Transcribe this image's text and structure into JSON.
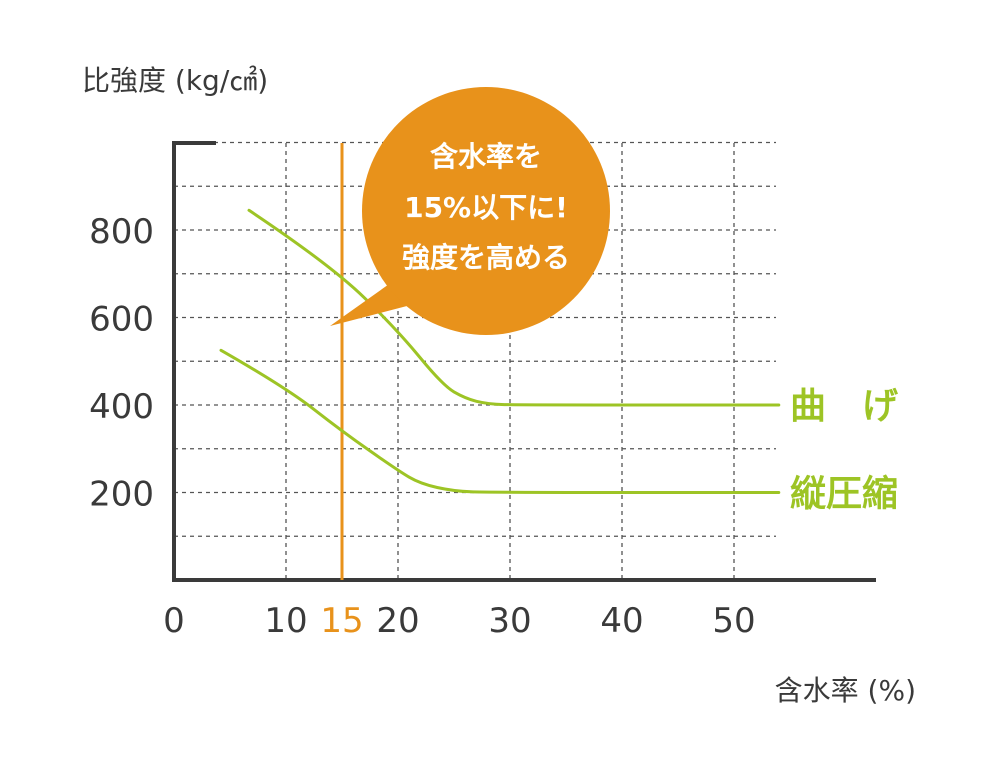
{
  "chart_data": {
    "type": "line",
    "ylabel": "比強度 (kg/㎠)",
    "xlabel": "含水率 (%)",
    "xlim": [
      0,
      63
    ],
    "ylim": [
      0,
      1000
    ],
    "x_ticks": [
      {
        "value": 0,
        "label": "0"
      },
      {
        "value": 10,
        "label": "10"
      },
      {
        "value": 15,
        "label": "15"
      },
      {
        "value": 20,
        "label": "20"
      },
      {
        "value": 30,
        "label": "30"
      },
      {
        "value": 40,
        "label": "40"
      },
      {
        "value": 50,
        "label": "50"
      }
    ],
    "y_ticks": [
      {
        "value": 200,
        "label": "200"
      },
      {
        "value": 400,
        "label": "400"
      },
      {
        "value": 600,
        "label": "600"
      },
      {
        "value": 800,
        "label": "800"
      }
    ],
    "x_grid": [
      10,
      20,
      30,
      40,
      50
    ],
    "y_grid": [
      100,
      200,
      300,
      400,
      500,
      600,
      700,
      800,
      900,
      1000
    ],
    "grid": true,
    "grid_style": "dashed",
    "series": [
      {
        "name": "曲　げ",
        "color": "#9dc425",
        "points": [
          [
            6.7,
            845
          ],
          [
            14,
            720
          ],
          [
            20,
            570
          ],
          [
            24,
            445
          ],
          [
            26,
            415
          ],
          [
            28,
            402
          ],
          [
            31,
            400
          ],
          [
            54,
            400
          ]
        ]
      },
      {
        "name": "縦圧縮",
        "color": "#9dc425",
        "points": [
          [
            4.2,
            525
          ],
          [
            10,
            440
          ],
          [
            15,
            340
          ],
          [
            20,
            250
          ],
          [
            22,
            220
          ],
          [
            25,
            203
          ],
          [
            28,
            200
          ],
          [
            54,
            200
          ]
        ]
      }
    ],
    "reference_line": {
      "x": 15,
      "color": "#e8921b"
    },
    "callout": {
      "lines": [
        "含水率を",
        "15%以下に!",
        "強度を高める"
      ],
      "color": "#e8921b",
      "text_color": "#ffffff"
    },
    "colors": {
      "axis": "#3a3a3a",
      "text": "#3a3a3a",
      "grid": "#555555",
      "highlight_tick": "#e8921b"
    }
  }
}
